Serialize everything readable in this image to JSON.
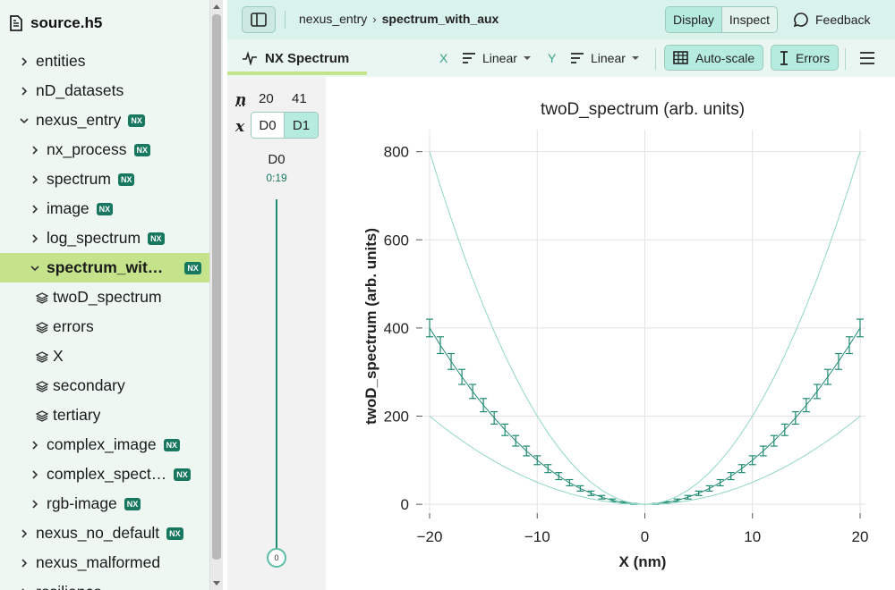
{
  "sidebar": {
    "file_name": "source.h5",
    "items": [
      {
        "label": "entities",
        "level": 0,
        "kind": "group",
        "nx": false
      },
      {
        "label": "nD_datasets",
        "level": 0,
        "kind": "group",
        "nx": false
      },
      {
        "label": "nexus_entry",
        "level": 0,
        "kind": "group-open",
        "nx": true
      },
      {
        "label": "nx_process",
        "level": 1,
        "kind": "group",
        "nx": true
      },
      {
        "label": "spectrum",
        "level": 1,
        "kind": "group",
        "nx": true
      },
      {
        "label": "image",
        "level": 1,
        "kind": "group",
        "nx": true
      },
      {
        "label": "log_spectrum",
        "level": 1,
        "kind": "group",
        "nx": true
      },
      {
        "label": "spectrum_wit…",
        "level": 1,
        "kind": "group-open",
        "nx": true,
        "selected": true
      },
      {
        "label": "twoD_spectrum",
        "level": 2,
        "kind": "dataset",
        "nx": false
      },
      {
        "label": "errors",
        "level": 2,
        "kind": "dataset",
        "nx": false
      },
      {
        "label": "X",
        "level": 2,
        "kind": "dataset",
        "nx": false
      },
      {
        "label": "secondary",
        "level": 2,
        "kind": "dataset",
        "nx": false
      },
      {
        "label": "tertiary",
        "level": 2,
        "kind": "dataset",
        "nx": false
      },
      {
        "label": "complex_image",
        "level": 1,
        "kind": "group",
        "nx": true
      },
      {
        "label": "complex_spect…",
        "level": 1,
        "kind": "group",
        "nx": true
      },
      {
        "label": "rgb-image",
        "level": 1,
        "kind": "group",
        "nx": true
      },
      {
        "label": "nexus_no_default",
        "level": 0,
        "kind": "group",
        "nx": true
      },
      {
        "label": "nexus_malformed",
        "level": 0,
        "kind": "group",
        "nx": false
      },
      {
        "label": "resilience",
        "level": 0,
        "kind": "group",
        "nx": false
      }
    ],
    "nx_badge": "NX"
  },
  "topbar": {
    "breadcrumb_parent": "nexus_entry",
    "breadcrumb_current": "spectrum_with_aux",
    "mode_display": "Display",
    "mode_inspect": "Inspect",
    "feedback_label": "Feedback"
  },
  "toolbar": {
    "tab_label": "NX Spectrum",
    "x_axis_label": "X",
    "x_scale": "Linear",
    "y_axis_label": "Y",
    "y_scale": "Linear",
    "autoscale_label": "Auto-scale",
    "errors_label": "Errors"
  },
  "mapper": {
    "n_symbol": "n",
    "x_symbol": "x",
    "dim_sizes": [
      "20",
      "41"
    ],
    "dims": [
      "D0",
      "D1"
    ],
    "slider_dim": "D0",
    "slider_range": "0:19",
    "slider_value": "0"
  },
  "colors": {
    "accent": "#1f8a72",
    "line": "#8fd6c6",
    "selected_bg": "#c5e38a",
    "nx_badge": "#17775f"
  },
  "chart_data": {
    "type": "line",
    "title": "twoD_spectrum (arb. units)",
    "xlabel": "X (nm)",
    "ylabel": "twoD_spectrum (arb. units)",
    "xlim": [
      -20.5,
      20.5
    ],
    "ylim": [
      -20,
      850
    ],
    "x_ticks": [
      -20,
      -10,
      0,
      10,
      20
    ],
    "x_tick_labels": [
      "−20",
      "−10",
      "0",
      "10",
      "20"
    ],
    "y_ticks": [
      0,
      200,
      400,
      600,
      800
    ],
    "y_tick_labels": [
      "0",
      "200",
      "400",
      "600",
      "800"
    ],
    "grid": true,
    "x": [
      -20,
      -19,
      -18,
      -17,
      -16,
      -15,
      -14,
      -13,
      -12,
      -11,
      -10,
      -9,
      -8,
      -7,
      -6,
      -5,
      -4,
      -3,
      -2,
      -1,
      0,
      1,
      2,
      3,
      4,
      5,
      6,
      7,
      8,
      9,
      10,
      11,
      12,
      13,
      14,
      15,
      16,
      17,
      18,
      19,
      20
    ],
    "series": [
      {
        "values": [
          400,
          361,
          324,
          289,
          256,
          225,
          196,
          169,
          144,
          121,
          100,
          81,
          64,
          49,
          36,
          25,
          16,
          9,
          4,
          1,
          0,
          1,
          4,
          9,
          16,
          25,
          36,
          49,
          64,
          81,
          100,
          121,
          144,
          169,
          196,
          225,
          256,
          289,
          324,
          361,
          400
        ],
        "errors": [
          20,
          19,
          18,
          17,
          16,
          15,
          14,
          13,
          12,
          11,
          10,
          9,
          8,
          7,
          6,
          5,
          4,
          3,
          2,
          1,
          0,
          1,
          2,
          3,
          4,
          5,
          6,
          7,
          8,
          9,
          10,
          11,
          12,
          13,
          14,
          15,
          16,
          17,
          18,
          19,
          20
        ],
        "color": "#1f8a72",
        "error_bars": true
      },
      {
        "values": [
          800,
          722,
          648,
          578,
          512,
          450,
          392,
          338,
          288,
          242,
          200,
          162,
          128,
          98,
          72,
          50,
          32,
          18,
          8,
          2,
          0,
          2,
          8,
          18,
          32,
          50,
          72,
          98,
          128,
          162,
          200,
          242,
          288,
          338,
          392,
          450,
          512,
          578,
          648,
          722,
          800
        ],
        "color": "#8fd6c6",
        "error_bars": false
      },
      {
        "values": [
          200,
          180.5,
          162,
          144.5,
          128,
          112.5,
          98,
          84.5,
          72,
          60.5,
          50,
          40.5,
          32,
          24.5,
          18,
          12.5,
          8,
          4.5,
          2,
          0.5,
          0,
          0.5,
          2,
          4.5,
          8,
          12.5,
          18,
          24.5,
          32,
          40.5,
          50,
          60.5,
          72,
          84.5,
          98,
          112.5,
          128,
          144.5,
          162,
          180.5,
          200
        ],
        "color": "#8fd6c6",
        "error_bars": false
      }
    ]
  }
}
